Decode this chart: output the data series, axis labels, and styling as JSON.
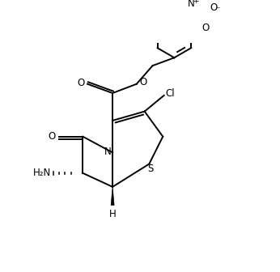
{
  "bg_color": "#ffffff",
  "line_color": "#000000",
  "line_width": 1.4,
  "font_size": 8.5,
  "figsize": [
    3.46,
    3.36
  ],
  "dpi": 100,
  "xlim": [
    0,
    10
  ],
  "ylim": [
    0,
    10
  ]
}
